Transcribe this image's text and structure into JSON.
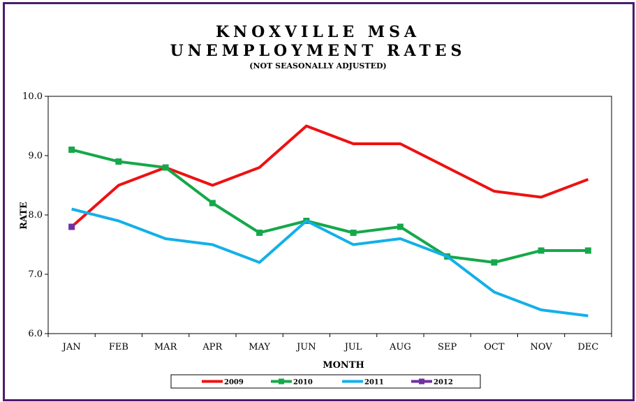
{
  "chart_data": {
    "type": "line",
    "title_line1": "KNOXVILLE MSA",
    "title_line2": "UNEMPLOYMENT RATES",
    "subtitle": "(NOT SEASONALLY ADJUSTED)",
    "xlabel": "MONTH",
    "ylabel": "RATE",
    "ylim": [
      6.0,
      10.0
    ],
    "yticks": [
      "6.0",
      "7.0",
      "8.0",
      "9.0",
      "10.0"
    ],
    "categories": [
      "JAN",
      "FEB",
      "MAR",
      "APR",
      "MAY",
      "JUN",
      "JUL",
      "AUG",
      "SEP",
      "OCT",
      "NOV",
      "DEC"
    ],
    "grid": false,
    "legend_position": "bottom",
    "series": [
      {
        "name": "2009",
        "color": "#ee1111",
        "marker": "none",
        "values": [
          7.8,
          8.5,
          8.8,
          8.5,
          8.8,
          9.5,
          9.2,
          9.2,
          8.8,
          8.4,
          8.3,
          8.6
        ]
      },
      {
        "name": "2010",
        "color": "#15a84a",
        "marker": "square",
        "values": [
          9.1,
          8.9,
          8.8,
          8.2,
          7.7,
          7.9,
          7.7,
          7.8,
          7.3,
          7.2,
          7.4,
          7.4
        ]
      },
      {
        "name": "2011",
        "color": "#13b0e8",
        "marker": "none",
        "values": [
          8.1,
          7.9,
          7.6,
          7.5,
          7.2,
          7.9,
          7.5,
          7.6,
          7.3,
          6.7,
          6.4,
          6.3
        ]
      },
      {
        "name": "2012",
        "color": "#7030a0",
        "marker": "square",
        "values": [
          7.8,
          null,
          null,
          null,
          null,
          null,
          null,
          null,
          null,
          null,
          null,
          null
        ]
      }
    ]
  }
}
